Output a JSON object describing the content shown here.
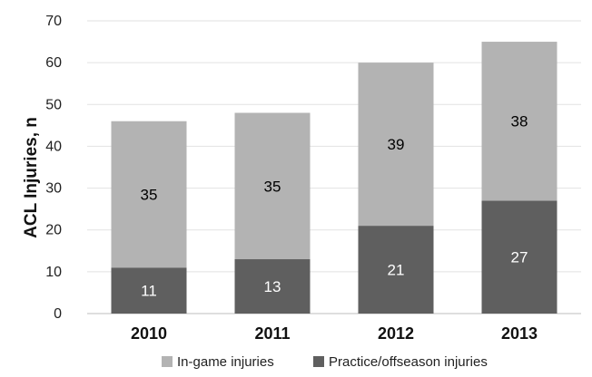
{
  "chart_data": {
    "type": "bar",
    "stacked": true,
    "title": "",
    "xlabel": "",
    "ylabel": "ACL Injuries, n",
    "ylim": [
      0,
      70
    ],
    "yticks": [
      "0",
      "10",
      "20",
      "30",
      "40",
      "50",
      "60",
      "70"
    ],
    "grid": true,
    "legend_position": "bottom",
    "categories": [
      "2010",
      "2011",
      "2012",
      "2013"
    ],
    "series": [
      {
        "name": "Practice/offseason injuries",
        "values": [
          11,
          13,
          21,
          27
        ],
        "labels": [
          "11",
          "13",
          "21",
          "27"
        ],
        "color": "#5f5f5f",
        "label_color": "#ffffff"
      },
      {
        "name": "In-game injuries",
        "values": [
          35,
          35,
          39,
          38
        ],
        "labels": [
          "35",
          "35",
          "39",
          "38"
        ],
        "color": "#b3b3b3",
        "label_color": "#000000"
      }
    ],
    "legend": [
      "In-game injuries",
      "Practice/offseason injuries"
    ]
  }
}
